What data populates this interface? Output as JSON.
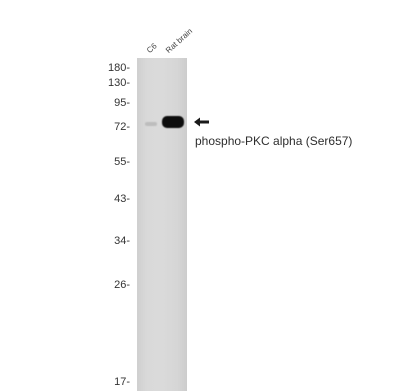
{
  "lanes": [
    "C6",
    "Rat brain"
  ],
  "markers": [
    "180-",
    "130-",
    "95-",
    "72-",
    "55-",
    "43-",
    "34-",
    "26-",
    "17-"
  ],
  "target": "phospho-PKC alpha (Ser657)"
}
